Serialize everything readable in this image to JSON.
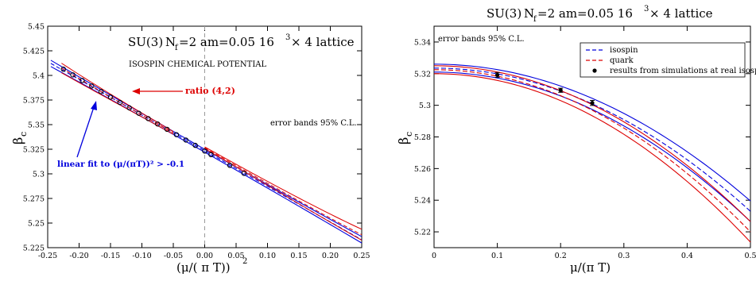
{
  "chart_data": [
    {
      "type": "scatter",
      "annotations": {
        "title_prefix": "SU(3)",
        "title_n": "N",
        "title_f": "f",
        "title_rest": "=2   am=0.05   16",
        "title_exp": "3",
        "title_tail": " × 4 lattice",
        "subtitle": "ISOSPIN CHEMICAL POTENTIAL",
        "error_bands": "error bands 95% C.L.",
        "ratio_label": "ratio (4,2)",
        "fit_label": "linear fit  to  (μ/(πT))² > -0.1"
      },
      "xlabel": "(μ/( π T))",
      "xlabel_sup": "2",
      "ylabel": "β",
      "ylabel_sub": "c",
      "xlim": [
        -0.25,
        0.25
      ],
      "ylim": [
        5.225,
        5.45
      ],
      "x_ticks": [
        "-0.25",
        "-0.20",
        "-0.15",
        "-0.10",
        "-0.05",
        "0.00",
        "0.05",
        "0.10",
        "0.15",
        "0.20",
        "0.25"
      ],
      "y_ticks": [
        "5.225",
        "5.25",
        "5.275",
        "5.3",
        "5.325",
        "5.35",
        "5.375",
        "5.4",
        "5.425",
        "5.45"
      ],
      "vline": 0,
      "points_x": [
        -0.225,
        -0.21,
        -0.195,
        -0.18,
        -0.165,
        -0.15,
        -0.135,
        -0.12,
        -0.105,
        -0.09,
        -0.075,
        -0.06,
        -0.045,
        -0.03,
        -0.015,
        0.0,
        0.01,
        0.04,
        0.0625
      ],
      "fit_line": {
        "slope": -0.362,
        "intercept": 5.3235
      },
      "ratio_curve": {
        "a": 5.3235,
        "b": -0.362,
        "c": 0.55
      }
    },
    {
      "type": "line",
      "annotations": {
        "title_prefix": "SU(3)",
        "title_n": "N",
        "title_f": "f",
        "title_rest": "=2   am=0.05   16",
        "title_exp": "3",
        "title_tail": " × 4 lattice",
        "error_bands": "error bands 95% C.L."
      },
      "xlabel": "μ/(π T)",
      "ylabel": "β",
      "ylabel_sub": "c",
      "xlim": [
        0,
        0.5
      ],
      "ylim": [
        5.21,
        5.35
      ],
      "x_ticks": [
        "0",
        "0.1",
        "0.2",
        "0.3",
        "0.4",
        "0.5"
      ],
      "y_ticks": [
        "5.22",
        "5.24",
        "5.26",
        "5.28",
        "5.3",
        "5.32",
        "5.34"
      ],
      "legend": [
        "isospin",
        "quark",
        "results from simulations at real isospin"
      ],
      "series": [
        {
          "name": "isospin",
          "color": "#0000dd",
          "a": 5.3235,
          "b": -0.362,
          "band": 0.0025
        },
        {
          "name": "quark",
          "color": "#dd0000",
          "a": 5.3225,
          "b": -0.41,
          "band": 0.0025
        }
      ],
      "points": [
        {
          "x": 0.1,
          "y": 5.3192,
          "err": 0.0015
        },
        {
          "x": 0.2,
          "y": 5.3095,
          "err": 0.0013
        },
        {
          "x": 0.25,
          "y": 5.3015,
          "err": 0.0016
        }
      ]
    }
  ],
  "colors": {
    "blue": "#0000dd",
    "red": "#dd0000",
    "grid": "#888888"
  }
}
